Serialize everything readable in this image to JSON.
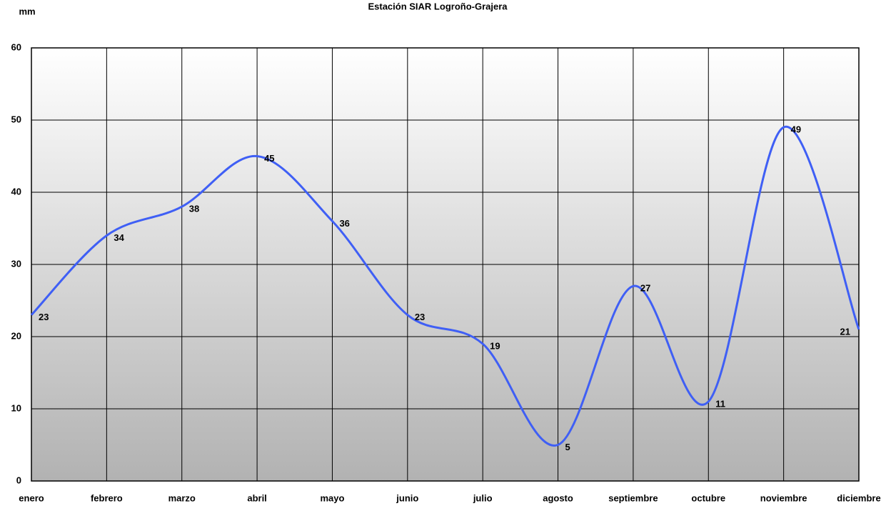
{
  "chart_data": {
    "type": "line",
    "title": "Estación SIAR Logroño-Grajera",
    "y_label": "mm",
    "categories": [
      "enero",
      "febrero",
      "marzo",
      "abril",
      "mayo",
      "junio",
      "julio",
      "agosto",
      "septiembre",
      "octubre",
      "noviembre",
      "diciembre"
    ],
    "values": [
      23,
      34,
      38,
      45,
      36,
      23,
      19,
      5,
      27,
      11,
      49,
      21
    ],
    "color": "#3f5ff5",
    "ylim": [
      0,
      60
    ],
    "yticks": [
      0,
      10,
      20,
      30,
      40,
      50,
      60
    ],
    "grid": true,
    "smooth": true
  }
}
